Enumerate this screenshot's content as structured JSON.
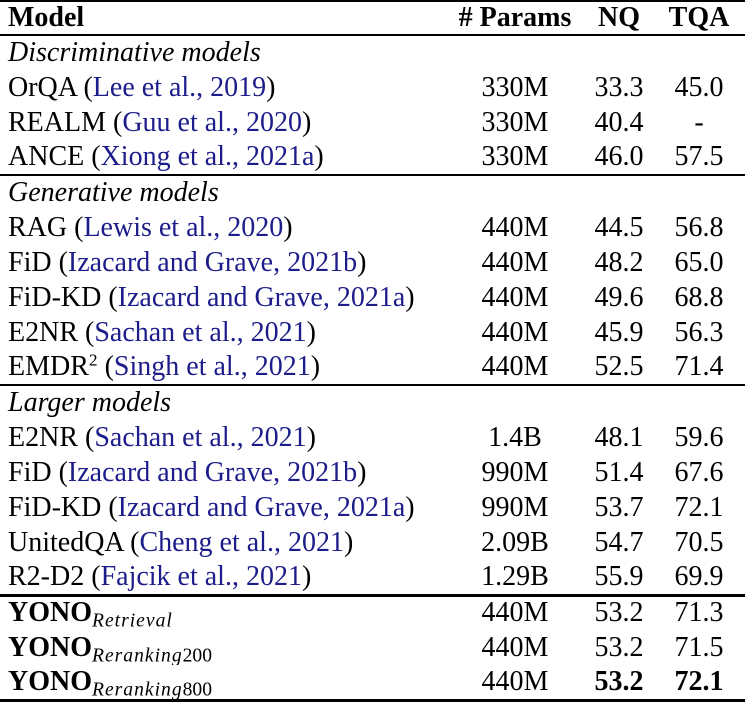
{
  "table": {
    "headers": [
      "Model",
      "# Params",
      "NQ",
      "TQA"
    ],
    "colors": {
      "citation": "#1c1c8a",
      "text": "#000000",
      "background": "#ffffff",
      "rule": "#000000"
    },
    "sections": [
      {
        "name": "section-discriminative",
        "label": "Discriminative models",
        "rows": [
          {
            "name": "OrQA",
            "citation": "Lee et al., 2019",
            "params": "330M",
            "nq": "33.3",
            "tqa": "45.0"
          },
          {
            "name": "REALM",
            "citation": "Guu et al., 2020",
            "params": "330M",
            "nq": "40.4",
            "tqa": "-"
          },
          {
            "name": "ANCE",
            "citation": "Xiong et al., 2021a",
            "params": "330M",
            "nq": "46.0",
            "tqa": "57.5"
          }
        ]
      },
      {
        "name": "section-generative",
        "label": "Generative models",
        "rows": [
          {
            "name": "RAG",
            "citation": "Lewis et al., 2020",
            "params": "440M",
            "nq": "44.5",
            "tqa": "56.8"
          },
          {
            "name": "FiD",
            "citation": "Izacard and Grave, 2021b",
            "params": "440M",
            "nq": "48.2",
            "tqa": "65.0"
          },
          {
            "name": "FiD-KD",
            "citation": "Izacard and Grave, 2021a",
            "params": "440M",
            "nq": "49.6",
            "tqa": "68.8"
          },
          {
            "name": "E2NR",
            "citation": "Sachan et al., 2021",
            "params": "440M",
            "nq": "45.9",
            "tqa": "56.3"
          },
          {
            "name": "EMDR",
            "sup": "2",
            "citation": "Singh et al., 2021",
            "params": "440M",
            "nq": "52.5",
            "tqa": "71.4"
          }
        ]
      },
      {
        "name": "section-larger",
        "label": "Larger models",
        "rows": [
          {
            "name": "E2NR",
            "citation": "Sachan et al., 2021",
            "params": "1.4B",
            "nq": "48.1",
            "tqa": "59.6"
          },
          {
            "name": "FiD",
            "citation": "Izacard and Grave, 2021b",
            "params": "990M",
            "nq": "51.4",
            "tqa": "67.6"
          },
          {
            "name": "FiD-KD",
            "citation": "Izacard and Grave, 2021a",
            "params": "990M",
            "nq": "53.7",
            "tqa": "72.1"
          },
          {
            "name": "UnitedQA",
            "citation": "Cheng et al., 2021",
            "params": "2.09B",
            "nq": "54.7",
            "tqa": "70.5"
          },
          {
            "name": "R2-D2",
            "citation": "Fajcik et al., 2021",
            "params": "1.29B",
            "nq": "55.9",
            "tqa": "69.9"
          }
        ]
      },
      {
        "name": "section-yono",
        "label": null,
        "ours": true,
        "rows": [
          {
            "name": "YONO",
            "bold_name": true,
            "sub": "Retrieval",
            "params": "440M",
            "nq": "53.2",
            "tqa": "71.3"
          },
          {
            "name": "YONO",
            "bold_name": true,
            "sub": "Reranking",
            "sub_num": "200",
            "params": "440M",
            "nq": "53.2",
            "tqa": "71.5"
          },
          {
            "name": "YONO",
            "bold_name": true,
            "sub": "Reranking",
            "sub_num": "800",
            "params": "440M",
            "nq": "53.2",
            "tqa": "72.1",
            "bold_nq": true,
            "bold_tqa": true
          }
        ]
      }
    ]
  }
}
